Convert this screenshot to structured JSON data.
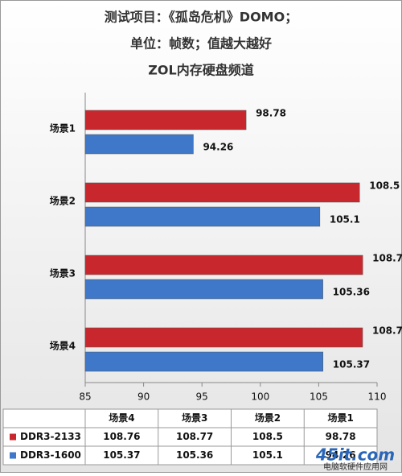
{
  "chart_data": {
    "type": "barh",
    "title": [
      "测试项目：《孤岛危机》DOMO；",
      "单位：帧数；值越大越好",
      "ZOL内存硬盘频道"
    ],
    "categories": [
      "场景1",
      "场景2",
      "场景3",
      "场景4"
    ],
    "series": [
      {
        "name": "DDR3-2133",
        "color": "#c8282d",
        "values": [
          98.78,
          108.5,
          108.77,
          108.76
        ]
      },
      {
        "name": "DDR3-1600",
        "color": "#3f78c8",
        "values": [
          94.26,
          105.1,
          105.36,
          105.37
        ]
      }
    ],
    "xlim": [
      85,
      110
    ],
    "xticks": [
      85,
      90,
      95,
      100,
      105,
      110
    ],
    "grid": false,
    "watermark": [
      "45it.com",
      "电脑软硬件应用网"
    ]
  }
}
